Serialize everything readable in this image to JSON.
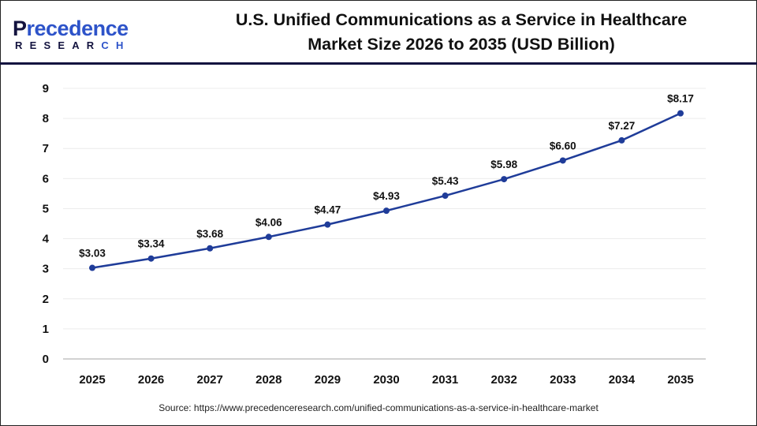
{
  "logo": {
    "text_main": "Precedence",
    "text_sub": "RESEARCH"
  },
  "header": {
    "title_line1": "U.S. Unified Communications as a Service in Healthcare",
    "title_line2": "Market Size 2026 to 2035 (USD Billion)"
  },
  "source": "Source: https://www.precedenceresearch.com/unified-communications-as-a-service-in-healthcare-market",
  "chart_data": {
    "type": "line",
    "title": "U.S. Unified Communications as a Service in Healthcare Market Size 2026 to 2035 (USD Billion)",
    "categories": [
      "2025",
      "2026",
      "2027",
      "2028",
      "2029",
      "2030",
      "2031",
      "2032",
      "2033",
      "2034",
      "2035"
    ],
    "values": [
      3.03,
      3.34,
      3.68,
      4.06,
      4.47,
      4.93,
      5.43,
      5.98,
      6.6,
      7.27,
      8.17
    ],
    "data_labels": [
      "$3.03",
      "$3.34",
      "$3.68",
      "$4.06",
      "$4.47",
      "$4.93",
      "$5.43",
      "$5.98",
      "$6.60",
      "$7.27",
      "$8.17"
    ],
    "yticks": [
      0,
      1,
      2,
      3,
      4,
      5,
      6,
      7,
      8,
      9
    ],
    "ylim": [
      0,
      9
    ],
    "grid": true,
    "line_color": "#1f3c99",
    "xlabel": "",
    "ylabel": ""
  }
}
